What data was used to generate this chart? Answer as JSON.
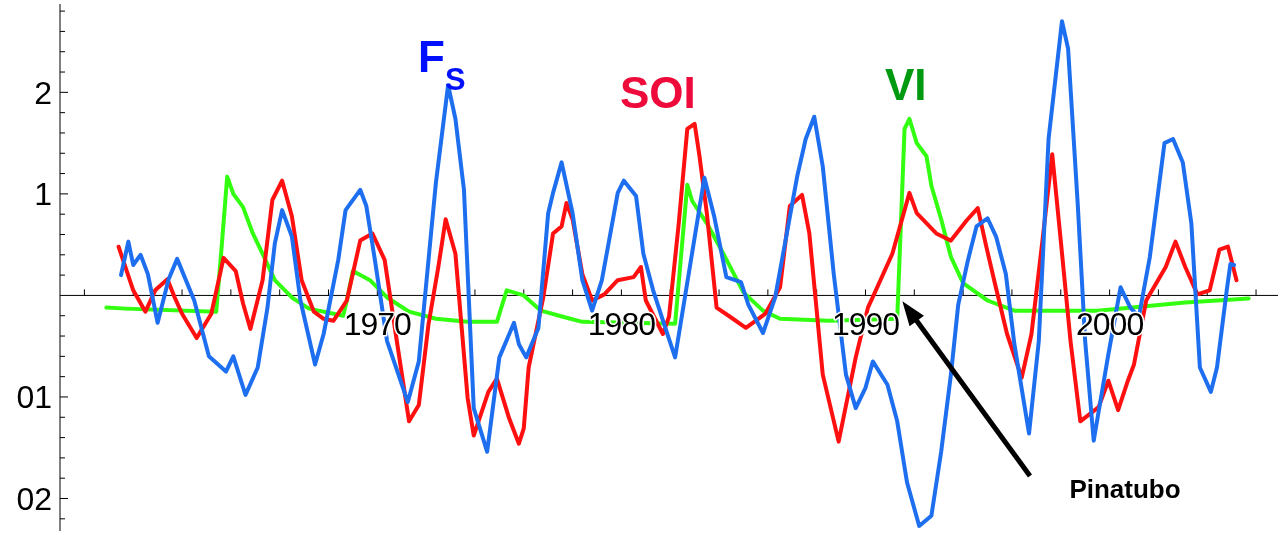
{
  "chart_data": {
    "type": "line",
    "annotations": [
      "Pinatubo"
    ],
    "xlim": [
      1957,
      2006.9
    ],
    "ylim": [
      -2.32,
      2.87
    ],
    "xticks": [
      {
        "value": 1958,
        "label": null
      },
      {
        "value": 1960,
        "label": null
      },
      {
        "value": 1962,
        "label": null
      },
      {
        "value": 1964,
        "label": null
      },
      {
        "value": 1966,
        "label": null
      },
      {
        "value": 1968,
        "label": null
      },
      1970,
      {
        "value": 1972,
        "label": null
      },
      {
        "value": 1974,
        "label": null
      },
      {
        "value": 1976,
        "label": null
      },
      {
        "value": 1978,
        "label": null
      },
      1980,
      {
        "value": 1982,
        "label": null
      },
      {
        "value": 1984,
        "label": null
      },
      {
        "value": 1986,
        "label": null
      },
      {
        "value": 1988,
        "label": null
      },
      1990,
      {
        "value": 1992,
        "label": null
      },
      {
        "value": 1994,
        "label": null
      },
      {
        "value": 1996,
        "label": null
      },
      {
        "value": 1998,
        "label": null
      },
      2000,
      {
        "value": 2002,
        "label": null
      },
      {
        "value": 2004,
        "label": null
      },
      {
        "value": 2006,
        "label": null
      }
    ],
    "yticks": [
      {
        "value": -2.2,
        "label": null
      },
      {
        "value": -2,
        "label": "02"
      },
      {
        "value": -1.8,
        "label": null
      },
      {
        "value": -1.6,
        "label": null
      },
      {
        "value": -1.4,
        "label": null
      },
      {
        "value": -1.2,
        "label": null
      },
      {
        "value": -1,
        "label": "01"
      },
      {
        "value": -0.8,
        "label": null
      },
      {
        "value": -0.6,
        "label": null
      },
      {
        "value": -0.4,
        "label": null
      },
      {
        "value": -0.2,
        "label": null
      },
      {
        "value": 0.2,
        "label": null
      },
      {
        "value": 0.4,
        "label": null
      },
      {
        "value": 0.6,
        "label": null
      },
      {
        "value": 0.8,
        "label": null
      },
      1,
      {
        "value": 1.2,
        "label": null
      },
      {
        "value": 1.4,
        "label": null
      },
      {
        "value": 1.6,
        "label": null
      },
      {
        "value": 1.8,
        "label": null
      },
      2,
      {
        "value": 2.2,
        "label": null
      },
      {
        "value": 2.4,
        "label": null
      },
      {
        "value": 2.6,
        "label": null
      },
      {
        "value": 2.8,
        "label": null
      }
    ],
    "grid": false,
    "marker": "none",
    "line_style": "solid",
    "series": [
      {
        "name": "VI",
        "color": "#33ff11",
        "x": [
          1958.9,
          1959.7,
          1963.4,
          1963.6,
          1963.85,
          1964.1,
          1964.5,
          1964.9,
          1965.3,
          1965.8,
          1966.5,
          1967.2,
          1968.6,
          1968.75,
          1969.0,
          1969.7,
          1970.4,
          1971.3,
          1972.4,
          1973.7,
          1974.9,
          1975.3,
          1976.0,
          1976.7,
          1977.6,
          1978.4,
          1982.2,
          1982.5,
          1982.7,
          1982.9,
          1983.5,
          1984.2,
          1985.0,
          1985.8,
          1986.5,
          1988.5,
          1991.3,
          1991.6,
          1991.8,
          1992.1,
          1992.5,
          1992.7,
          1993.1,
          1993.5,
          1994.0,
          1995.0,
          1996.1,
          1999.5,
          2003.1,
          2005.7
        ],
        "values": [
          -0.12,
          -0.13,
          -0.16,
          0.41,
          1.17,
          1.0,
          0.87,
          0.61,
          0.41,
          0.15,
          -0.02,
          -0.13,
          -0.2,
          -0.05,
          0.24,
          0.15,
          -0.02,
          -0.16,
          -0.23,
          -0.26,
          -0.26,
          0.05,
          0.0,
          -0.15,
          -0.21,
          -0.26,
          -0.28,
          0.54,
          1.09,
          0.93,
          0.71,
          0.4,
          0.03,
          -0.15,
          -0.23,
          -0.25,
          -0.23,
          1.64,
          1.74,
          1.5,
          1.37,
          1.08,
          0.75,
          0.38,
          0.12,
          -0.05,
          -0.15,
          -0.15,
          -0.07,
          -0.03
        ]
      },
      {
        "name": "SOI",
        "color": "#ff1010",
        "x": [
          1959.4,
          1960.0,
          1960.5,
          1960.9,
          1961.4,
          1961.7,
          1962.0,
          1962.6,
          1963.2,
          1963.7,
          1964.2,
          1964.5,
          1964.8,
          1965.3,
          1965.7,
          1966.1,
          1966.5,
          1966.9,
          1967.4,
          1967.8,
          1968.2,
          1968.75,
          1969.3,
          1969.8,
          1970.3,
          1970.8,
          1971.3,
          1971.7,
          1972.1,
          1972.5,
          1972.8,
          1973.2,
          1973.7,
          1973.95,
          1974.55,
          1974.9,
          1975.4,
          1975.8,
          1976.0,
          1976.2,
          1976.8,
          1977.2,
          1977.55,
          1977.75,
          1978.0,
          1978.4,
          1978.8,
          1979.3,
          1979.85,
          1980.5,
          1980.8,
          1981.0,
          1981.7,
          1981.95,
          1982.35,
          1982.7,
          1983.0,
          1983.2,
          1983.5,
          1983.9,
          1984.45,
          1985.1,
          1985.9,
          1986.5,
          1986.9,
          1987.4,
          1987.7,
          1988.25,
          1988.9,
          1989.6,
          1990.1,
          1990.35,
          1991.1,
          1991.8,
          1992.1,
          1992.9,
          1993.5,
          1994.15,
          1994.6,
          1994.95,
          1995.3,
          1995.8,
          1996.4,
          1996.8,
          1997.25,
          1997.65,
          1998.0,
          1998.4,
          1998.8,
          1999.55,
          1999.95,
          2000.35,
          2000.75,
          2001.0,
          2001.5,
          2002.3,
          2002.7,
          2003.1,
          2003.6,
          2004.1,
          2004.5,
          2004.85,
          2005.2
        ],
        "values": [
          0.48,
          0.05,
          -0.16,
          0.05,
          0.16,
          -0.02,
          -0.18,
          -0.42,
          -0.18,
          0.37,
          0.24,
          -0.08,
          -0.33,
          0.15,
          0.94,
          1.13,
          0.78,
          0.15,
          -0.16,
          -0.23,
          -0.25,
          -0.05,
          0.54,
          0.61,
          0.35,
          -0.45,
          -1.24,
          -1.08,
          -0.28,
          0.28,
          0.75,
          0.41,
          -1.01,
          -1.38,
          -0.95,
          -0.82,
          -1.21,
          -1.46,
          -1.31,
          -0.71,
          -0.02,
          0.61,
          0.68,
          0.91,
          0.75,
          0.21,
          -0.05,
          0.01,
          0.15,
          0.18,
          0.28,
          -0.05,
          -0.38,
          -0.21,
          0.71,
          1.64,
          1.69,
          1.37,
          0.81,
          -0.12,
          -0.21,
          -0.32,
          -0.18,
          0.08,
          0.88,
          0.99,
          0.61,
          -0.78,
          -1.44,
          -0.61,
          -0.12,
          0.01,
          0.41,
          1.01,
          0.81,
          0.61,
          0.54,
          0.74,
          0.86,
          0.48,
          0.12,
          -0.38,
          -0.81,
          -0.38,
          0.54,
          1.39,
          0.54,
          -0.45,
          -1.24,
          -1.1,
          -0.84,
          -1.13,
          -0.84,
          -0.68,
          -0.05,
          0.28,
          0.53,
          0.28,
          0.01,
          0.05,
          0.45,
          0.48,
          0.15
        ]
      },
      {
        "name": "F$_{S}$",
        "color": "#1e6ff0",
        "x": [
          1959.5,
          1959.8,
          1960.0,
          1960.3,
          1960.6,
          1961.0,
          1961.45,
          1961.8,
          1962.5,
          1963.1,
          1963.8,
          1964.1,
          1964.6,
          1965.1,
          1965.5,
          1965.8,
          1966.1,
          1966.5,
          1966.85,
          1967.45,
          1967.8,
          1968.4,
          1968.7,
          1969.3,
          1969.55,
          1969.9,
          1970.4,
          1971.25,
          1971.7,
          1972.4,
          1972.9,
          1973.2,
          1973.55,
          1973.95,
          1974.5,
          1975.0,
          1975.6,
          1975.8,
          1976.1,
          1976.6,
          1977.0,
          1977.2,
          1977.55,
          1978.0,
          1978.4,
          1978.8,
          1979.2,
          1979.85,
          1980.1,
          1980.6,
          1980.9,
          1981.3,
          1981.8,
          1982.2,
          1982.6,
          1983.4,
          1983.8,
          1984.3,
          1984.9,
          1985.2,
          1985.8,
          1986.3,
          1987.2,
          1987.55,
          1987.9,
          1988.25,
          1988.7,
          1989.2,
          1989.6,
          1990.0,
          1990.3,
          1990.9,
          1991.3,
          1991.7,
          1992.2,
          1992.7,
          1993.1,
          1993.5,
          1993.8,
          1994.2,
          1994.55,
          1995.0,
          1995.35,
          1995.75,
          1996.1,
          1996.7,
          1997.1,
          1997.5,
          1998.05,
          1998.3,
          1998.7,
          1999.0,
          1999.35,
          1999.95,
          2000.45,
          2000.85,
          2001.2,
          2001.65,
          2002.25,
          2002.6,
          2003.0,
          2003.35,
          2003.7,
          2004.15,
          2004.4,
          2004.8,
          2004.95,
          2005.1
        ],
        "values": [
          0.2,
          0.53,
          0.3,
          0.4,
          0.21,
          -0.27,
          0.16,
          0.36,
          -0.05,
          -0.6,
          -0.75,
          -0.6,
          -0.98,
          -0.71,
          -0.12,
          0.51,
          0.84,
          0.58,
          -0.05,
          -0.68,
          -0.38,
          0.35,
          0.84,
          1.04,
          0.88,
          0.35,
          -0.45,
          -1.05,
          -0.65,
          1.11,
          2.07,
          1.74,
          1.04,
          -1.11,
          -1.54,
          -0.61,
          -0.27,
          -0.48,
          -0.61,
          -0.32,
          0.81,
          1.01,
          1.31,
          0.81,
          0.15,
          -0.15,
          0.15,
          1.01,
          1.13,
          0.98,
          0.41,
          0.05,
          -0.32,
          -0.61,
          -0.02,
          1.16,
          0.78,
          0.18,
          0.13,
          -0.09,
          -0.37,
          -0.02,
          1.17,
          1.54,
          1.76,
          1.27,
          0.21,
          -0.78,
          -1.11,
          -0.91,
          -0.65,
          -0.88,
          -1.24,
          -1.84,
          -2.27,
          -2.17,
          -1.54,
          -0.78,
          -0.09,
          0.35,
          0.68,
          0.76,
          0.58,
          0.21,
          -0.48,
          -1.36,
          -0.45,
          1.54,
          2.7,
          2.43,
          0.88,
          -0.45,
          -1.43,
          -0.58,
          0.08,
          -0.12,
          -0.21,
          0.38,
          1.5,
          1.54,
          1.31,
          0.71,
          -0.71,
          -0.95,
          -0.71,
          0.05,
          0.31,
          0.3
        ]
      }
    ]
  }
}
